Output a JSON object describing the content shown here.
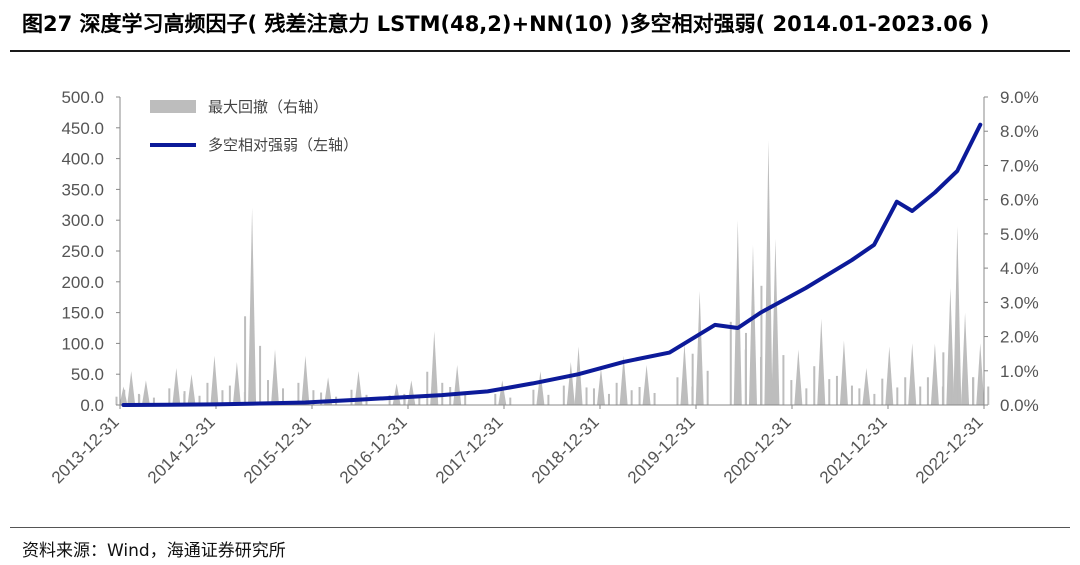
{
  "figure": {
    "title": "图27 深度学习高频因子( 残差注意力 LSTM(48,2)+NN(10) )多空相对强弱( 2014.01-2023.06 )",
    "source": "资料来源：Wind，海通证券研究所"
  },
  "colors": {
    "line": "#0c1a99",
    "bars": "#bdbdbd",
    "axis": "#888888",
    "text": "#555555"
  },
  "chart_data": {
    "type": "bar+line",
    "legend": [
      {
        "name": "最大回撤（右轴）",
        "kind": "bar"
      },
      {
        "name": "多空相对强弱（左轴）",
        "kind": "line"
      }
    ],
    "legend_position": "top-left",
    "grid": false,
    "left_axis": {
      "ylim": [
        0,
        500
      ],
      "ticks": [
        "500.0",
        "450.0",
        "400.0",
        "350.0",
        "300.0",
        "250.0",
        "200.0",
        "150.0",
        "100.0",
        "50.0",
        "0.0"
      ]
    },
    "right_axis": {
      "ylim": [
        0.0,
        9.0
      ],
      "unit": "%",
      "ticks": [
        "9.0%",
        "8.0%",
        "7.0%",
        "6.0%",
        "5.0%",
        "4.0%",
        "3.0%",
        "2.0%",
        "1.0%",
        "0.0%"
      ]
    },
    "x_axis": {
      "tick_labels": [
        "2013-12-31",
        "2014-12-31",
        "2015-12-31",
        "2016-12-31",
        "2017-12-31",
        "2018-12-31",
        "2019-12-31",
        "2020-12-31",
        "2021-12-31",
        "2022-12-31"
      ]
    },
    "series_line": {
      "name": "多空相对强弱（左轴）",
      "points": [
        [
          "2014-01",
          0
        ],
        [
          "2014-07",
          0.5
        ],
        [
          "2015-01",
          1
        ],
        [
          "2015-07",
          2.5
        ],
        [
          "2016-01",
          4
        ],
        [
          "2016-07",
          8
        ],
        [
          "2017-01",
          12
        ],
        [
          "2017-07",
          16
        ],
        [
          "2018-01",
          22
        ],
        [
          "2018-07",
          35
        ],
        [
          "2019-01",
          50
        ],
        [
          "2019-07",
          70
        ],
        [
          "2020-01",
          85
        ],
        [
          "2020-07",
          130
        ],
        [
          "2020-10",
          125
        ],
        [
          "2021-01",
          150
        ],
        [
          "2021-07",
          190
        ],
        [
          "2022-01",
          235
        ],
        [
          "2022-04",
          260
        ],
        [
          "2022-07",
          330
        ],
        [
          "2022-09",
          315
        ],
        [
          "2022-12",
          345
        ],
        [
          "2023-03",
          380
        ],
        [
          "2023-06",
          455
        ]
      ]
    },
    "series_bars": {
      "name": "最大回撤（右轴）",
      "spikes_left_scale": [
        [
          "2014-01",
          30
        ],
        [
          "2014-02",
          55
        ],
        [
          "2014-04",
          40
        ],
        [
          "2014-08",
          60
        ],
        [
          "2014-10",
          50
        ],
        [
          "2015-01",
          80
        ],
        [
          "2015-04",
          70
        ],
        [
          "2015-06",
          320
        ],
        [
          "2015-09",
          90
        ],
        [
          "2016-01",
          80
        ],
        [
          "2016-04",
          45
        ],
        [
          "2016-08",
          55
        ],
        [
          "2017-01",
          35
        ],
        [
          "2017-03",
          40
        ],
        [
          "2017-06",
          120
        ],
        [
          "2017-09",
          65
        ],
        [
          "2018-03",
          40
        ],
        [
          "2018-08",
          55
        ],
        [
          "2018-12",
          70
        ],
        [
          "2019-01",
          95
        ],
        [
          "2019-04",
          60
        ],
        [
          "2019-07",
          80
        ],
        [
          "2019-10",
          65
        ],
        [
          "2020-03",
          100
        ],
        [
          "2020-05",
          185
        ],
        [
          "2020-10",
          300
        ],
        [
          "2020-12",
          260
        ],
        [
          "2021-02",
          430
        ],
        [
          "2021-03",
          270
        ],
        [
          "2021-06",
          90
        ],
        [
          "2021-09",
          140
        ],
        [
          "2021-12",
          105
        ],
        [
          "2022-03",
          60
        ],
        [
          "2022-06",
          95
        ],
        [
          "2022-09",
          100
        ],
        [
          "2022-12",
          100
        ],
        [
          "2023-02",
          190
        ],
        [
          "2023-03",
          290
        ],
        [
          "2023-04",
          150
        ],
        [
          "2023-06",
          100
        ]
      ]
    }
  }
}
